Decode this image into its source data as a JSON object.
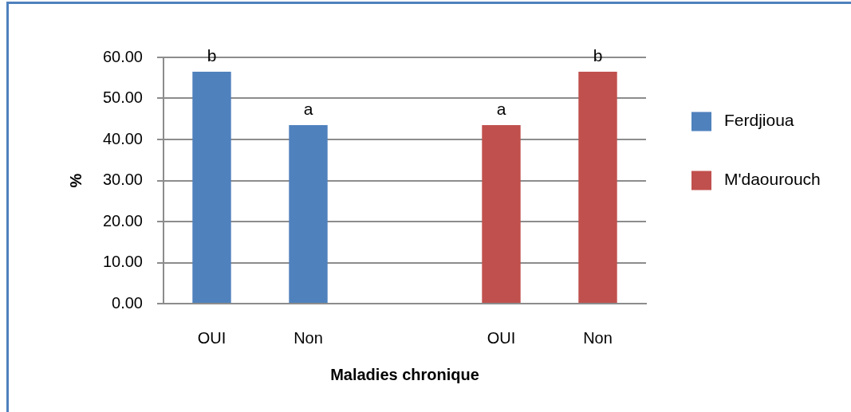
{
  "chart_data": {
    "type": "bar",
    "xlabel": "Maladies chronique",
    "ylabel": "%",
    "categories": [
      "OUI",
      "Non",
      null,
      "OUI",
      "Non"
    ],
    "series": [
      {
        "name": "Ferdjioua",
        "color": "#4f81bd",
        "values": [
          56.5,
          43.5,
          null,
          null,
          null
        ],
        "value_labels": [
          "b",
          "a",
          null,
          null,
          null
        ]
      },
      {
        "name": "M'daourouch",
        "color": "#c0504d",
        "values": [
          null,
          null,
          null,
          43.5,
          56.5
        ],
        "value_labels": [
          null,
          null,
          null,
          "a",
          "b"
        ]
      }
    ],
    "ylim": [
      0,
      60
    ],
    "yticks": [
      {
        "value": 0,
        "label": "0.00"
      },
      {
        "value": 10,
        "label": "10.00"
      },
      {
        "value": 20,
        "label": "20.00"
      },
      {
        "value": 30,
        "label": "30.00"
      },
      {
        "value": 40,
        "label": "40.00"
      },
      {
        "value": 50,
        "label": "50.00"
      },
      {
        "value": 60,
        "label": "60.00"
      }
    ],
    "grid": "y",
    "legend": "right"
  }
}
